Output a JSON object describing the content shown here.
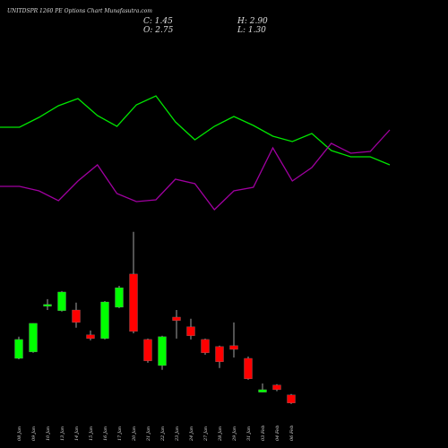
{
  "title": "UNITDSPR 1260 PE Options Chart Munafasutra.com",
  "ohlc_summary": {
    "close": "C: 1.45",
    "open": "O: 2.75",
    "high": "H: 2.90",
    "low": "L: 1.30"
  },
  "chart_data": [
    {
      "type": "line",
      "ylim": [
        0,
        150
      ],
      "series": [
        {
          "color": "#00e600",
          "values": [
            108,
            108,
            119,
            132,
            140,
            121,
            109,
            133,
            143,
            114,
            94,
            109,
            120,
            110,
            98,
            92,
            101,
            82,
            75,
            75,
            66
          ]
        },
        {
          "color": "#a000a0",
          "values": [
            42,
            42,
            37,
            26,
            48,
            66,
            34,
            25,
            27,
            50,
            45,
            16,
            37,
            41,
            85,
            48,
            63,
            90,
            79,
            81,
            105
          ]
        }
      ]
    },
    {
      "type": "candlestick",
      "ylim": [
        0.7,
        29.6
      ],
      "up_color": "#00ff00",
      "down_color": "#ff0000",
      "categories": [
        "08 Jan",
        "09 Jan",
        "10 Jan",
        "13 Jan",
        "14 Jan",
        "15 Jan",
        "16 Jan",
        "17 Jan",
        "20 Jan",
        "21 Jan",
        "22 Jan",
        "23 Jan",
        "24 Jan",
        "27 Jan",
        "28 Jan",
        "29 Jan",
        "31 Jan",
        "03 Feb",
        "04 Feb",
        "06 Feb"
      ],
      "open": [
        8.65,
        9.7,
        17.05,
        16.35,
        16.45,
        12.45,
        11.85,
        16.9,
        22.25,
        11.7,
        7.5,
        15.3,
        13.75,
        11.7,
        10.55,
        10.7,
        8.65,
        3.2,
        4.35,
        2.75
      ],
      "high": [
        12.15,
        14.3,
        18.2,
        19.5,
        17.65,
        13.15,
        17.9,
        20.35,
        29.05,
        11.85,
        12.3,
        16.45,
        15.05,
        11.85,
        10.7,
        14.45,
        8.95,
        4.6,
        4.5,
        2.9
      ],
      "low": [
        8.5,
        9.55,
        16.45,
        16.2,
        13.6,
        11.55,
        11.7,
        16.75,
        12.7,
        7.95,
        6.8,
        11.85,
        11.7,
        9.25,
        7.1,
        8.8,
        5.2,
        3.2,
        3.35,
        1.3
      ],
      "close": [
        11.7,
        14.3,
        17.35,
        19.35,
        14.45,
        11.85,
        17.75,
        20.05,
        13.0,
        8.25,
        12.15,
        14.75,
        12.3,
        9.55,
        8.1,
        10.1,
        5.35,
        3.6,
        3.6,
        1.45
      ]
    }
  ]
}
